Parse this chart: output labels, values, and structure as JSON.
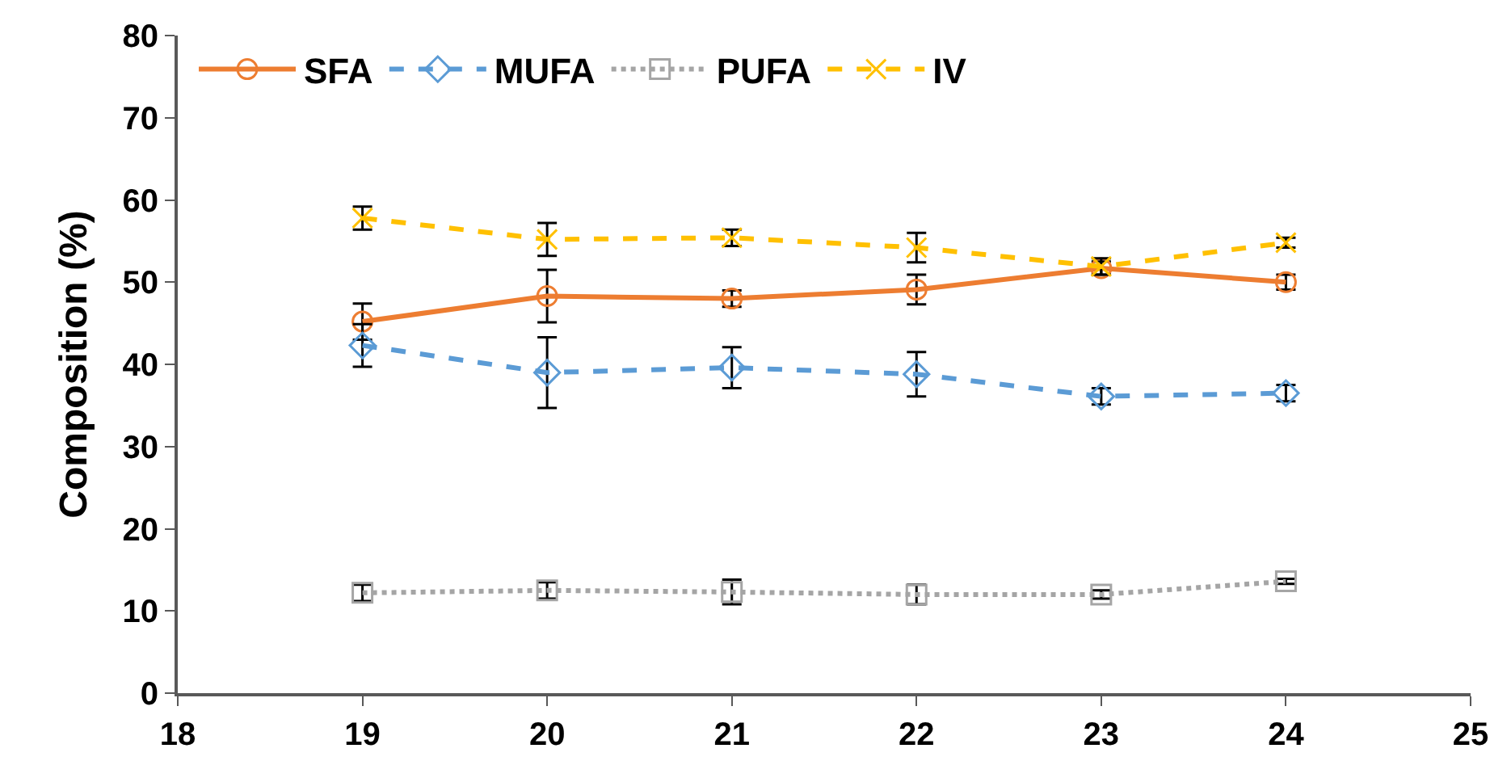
{
  "chart_data": {
    "type": "line",
    "ylabel": "Composition (%)",
    "x": [
      19,
      20,
      21,
      22,
      23,
      24
    ],
    "xlim": [
      18,
      25
    ],
    "xticks": [
      18,
      19,
      20,
      21,
      22,
      23,
      24,
      25
    ],
    "ylim": [
      0,
      80
    ],
    "yticks": [
      0,
      10,
      20,
      30,
      40,
      50,
      60,
      70,
      80
    ],
    "legend": "top left",
    "series": [
      {
        "name": "SFA",
        "color": "#ed7d31",
        "marker": "circle",
        "line_style": "solid",
        "values": [
          45.2,
          48.3,
          48.0,
          49.1,
          51.7,
          50.0
        ],
        "errors": [
          2.2,
          3.2,
          1.0,
          1.8,
          0.8,
          0.9
        ]
      },
      {
        "name": "MUFA",
        "color": "#5b9bd5",
        "marker": "diamond",
        "line_style": "dashed",
        "values": [
          42.3,
          39.0,
          39.6,
          38.8,
          36.1,
          36.5
        ],
        "errors": [
          2.6,
          4.3,
          2.5,
          2.7,
          1.0,
          1.0
        ]
      },
      {
        "name": "PUFA",
        "color": "#a5a5a5",
        "marker": "square",
        "line_style": "dotted",
        "values": [
          12.2,
          12.5,
          12.3,
          12.0,
          12.0,
          13.6
        ],
        "errors": [
          1.0,
          1.0,
          1.5,
          1.2,
          0.5,
          0.3
        ]
      },
      {
        "name": "IV",
        "color": "#ffc000",
        "marker": "cross",
        "line_style": "dashed",
        "values": [
          57.8,
          55.2,
          55.4,
          54.2,
          51.9,
          54.8
        ],
        "errors": [
          1.4,
          2.0,
          1.0,
          1.8,
          1.0,
          0.6
        ]
      }
    ]
  }
}
